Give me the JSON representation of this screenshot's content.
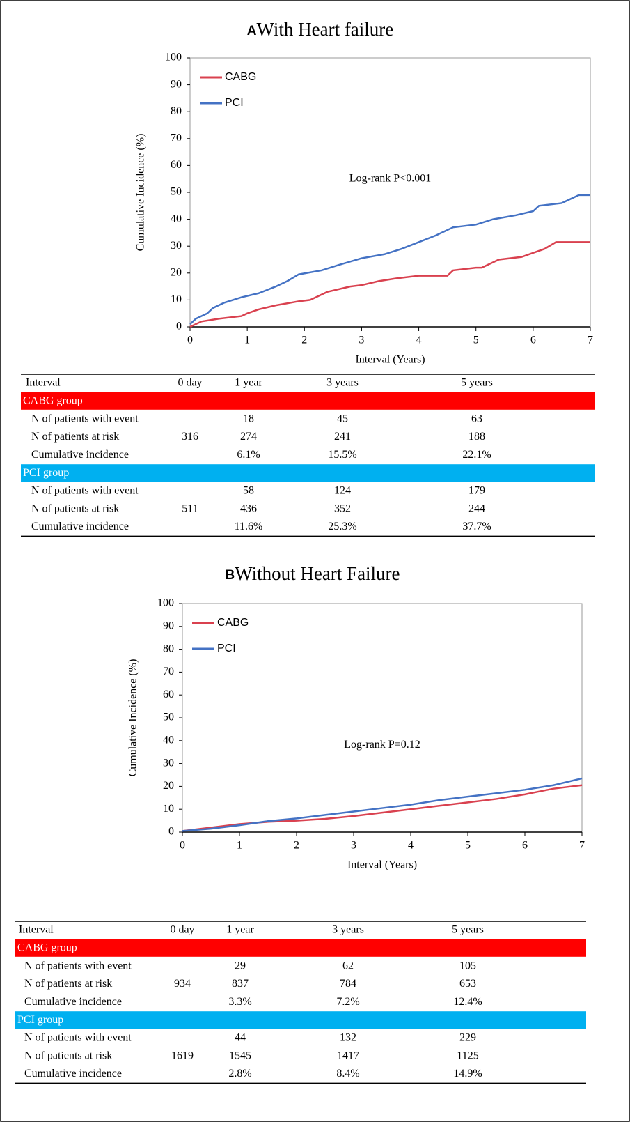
{
  "chart_data": [
    {
      "type": "line",
      "panel": "A",
      "title": "With Heart failure",
      "annotation": "Log-rank P<0.001",
      "xlabel": "Interval (Years)",
      "ylabel": "Cumulative Incidence (%)",
      "xlim": [
        0,
        7
      ],
      "xticks": [
        0,
        1,
        2,
        3,
        4,
        5,
        6,
        7
      ],
      "ylim": [
        0,
        100
      ],
      "yticks": [
        0,
        10,
        20,
        30,
        40,
        50,
        60,
        70,
        80,
        90,
        100
      ],
      "legend": "upper left",
      "series": [
        {
          "name": "CABG",
          "color": "#d9414f",
          "x": [
            0,
            0.1,
            0.2,
            0.5,
            0.9,
            1.0,
            1.2,
            1.5,
            1.9,
            2.1,
            2.4,
            2.8,
            3.0,
            3.3,
            3.6,
            4.0,
            4.5,
            4.6,
            5.0,
            5.1,
            5.4,
            5.8,
            6.2,
            6.4,
            7.0
          ],
          "values": [
            0,
            1,
            2,
            3,
            4,
            5,
            6.5,
            8,
            9.5,
            10,
            13,
            15,
            15.5,
            17,
            18,
            19,
            19,
            21,
            22,
            22,
            25,
            26,
            29,
            31.5,
            31.5
          ]
        },
        {
          "name": "PCI",
          "color": "#4472c4",
          "x": [
            0,
            0.1,
            0.3,
            0.4,
            0.6,
            0.9,
            1.2,
            1.5,
            1.7,
            1.9,
            2.3,
            2.6,
            3.0,
            3.4,
            3.7,
            4.0,
            4.3,
            4.6,
            5.0,
            5.3,
            5.7,
            6.0,
            6.1,
            6.5,
            6.8,
            7.0
          ],
          "values": [
            1,
            3,
            5,
            7,
            9,
            11,
            12.5,
            15,
            17,
            19.5,
            21,
            23,
            25.5,
            27,
            29,
            31.5,
            34,
            37,
            38,
            40,
            41.5,
            43,
            45,
            46,
            49,
            49
          ]
        }
      ]
    },
    {
      "type": "line",
      "panel": "B",
      "title": "Without Heart Failure",
      "annotation": "Log-rank P=0.12",
      "xlabel": "Interval (Years)",
      "ylabel": "Cumulative Incidence (%)",
      "xlim": [
        0,
        7
      ],
      "xticks": [
        0,
        1,
        2,
        3,
        4,
        5,
        6,
        7
      ],
      "ylim": [
        0,
        100
      ],
      "yticks": [
        0,
        10,
        20,
        30,
        40,
        50,
        60,
        70,
        80,
        90,
        100
      ],
      "legend": "upper left",
      "series": [
        {
          "name": "CABG",
          "color": "#d9414f",
          "x": [
            0,
            0.5,
            1,
            1.5,
            2,
            2.5,
            3,
            3.5,
            4,
            4.5,
            5,
            5.5,
            6,
            6.5,
            7
          ],
          "values": [
            0.5,
            2,
            3.5,
            4.5,
            5,
            5.8,
            7,
            8.5,
            10,
            11.5,
            13,
            14.5,
            16.5,
            19,
            20.5
          ]
        },
        {
          "name": "PCI",
          "color": "#4472c4",
          "x": [
            0,
            0.5,
            1,
            1.5,
            2,
            2.5,
            3,
            3.5,
            4,
            4.5,
            5,
            5.5,
            6,
            6.5,
            7
          ],
          "values": [
            0.5,
            1.5,
            3,
            4.8,
            6,
            7.5,
            9,
            10.5,
            12,
            14,
            15.5,
            17,
            18.5,
            20.5,
            23.5
          ]
        }
      ]
    }
  ],
  "tables": [
    {
      "header": [
        "Interval",
        "0 day",
        "1 year",
        "3 years",
        "5 years"
      ],
      "groups": [
        {
          "name": "CABG group",
          "color": "#ff0000",
          "rows": [
            [
              "N of patients with event",
              null,
              "18",
              "45",
              "63"
            ],
            [
              "N of patients at risk",
              "316",
              "274",
              "241",
              "188"
            ],
            [
              "Cumulative incidence",
              null,
              "6.1%",
              "15.5%",
              "22.1%"
            ]
          ]
        },
        {
          "name": "PCI group",
          "color": "#00b0f0",
          "rows": [
            [
              "N of patients with event",
              null,
              "58",
              "124",
              "179"
            ],
            [
              "N of patients at risk",
              "511",
              "436",
              "352",
              "244"
            ],
            [
              "Cumulative incidence",
              null,
              "11.6%",
              "25.3%",
              "37.7%"
            ]
          ]
        }
      ]
    },
    {
      "header": [
        "Interval",
        "0 day",
        "1 year",
        "3 years",
        "5 years"
      ],
      "groups": [
        {
          "name": "CABG group",
          "color": "#ff0000",
          "rows": [
            [
              "N of patients with event",
              null,
              "29",
              "62",
              "105"
            ],
            [
              "N of patients at risk",
              "934",
              "837",
              "784",
              "653"
            ],
            [
              "Cumulative incidence",
              null,
              "3.3%",
              "7.2%",
              "12.4%"
            ]
          ]
        },
        {
          "name": "PCI group",
          "color": "#00b0f0",
          "rows": [
            [
              "N of patients with event",
              null,
              "44",
              "132",
              "229"
            ],
            [
              "N of patients at risk",
              "1619",
              "1545",
              "1417",
              "1125"
            ],
            [
              "Cumulative incidence",
              null,
              "2.8%",
              "8.4%",
              "14.9%"
            ]
          ]
        }
      ]
    }
  ]
}
